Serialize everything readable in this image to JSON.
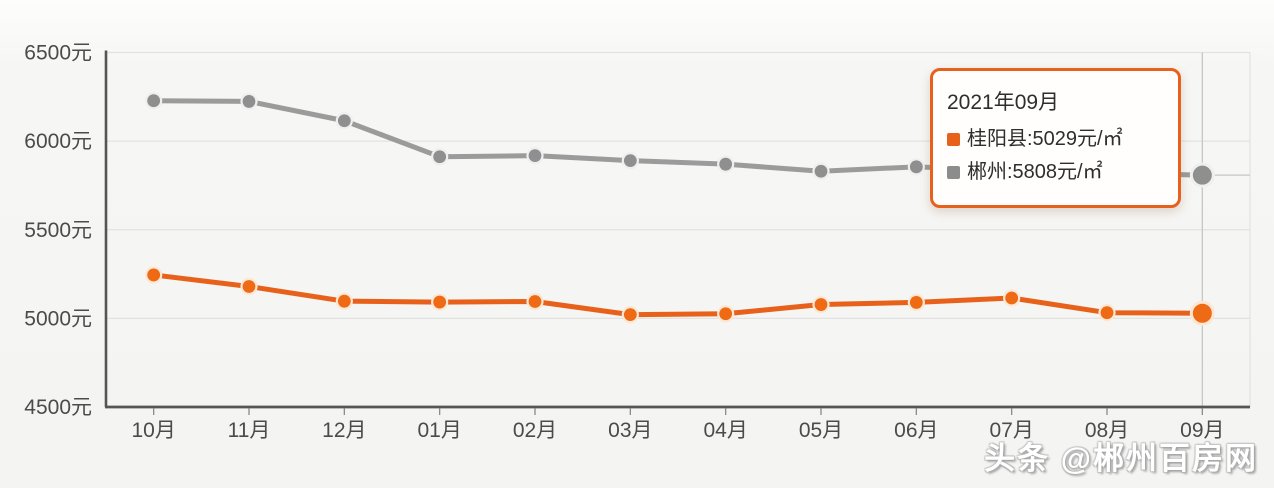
{
  "chart_data": {
    "type": "line",
    "title": "",
    "xlabel": "",
    "ylabel": "",
    "unit": "元",
    "categories": [
      "10月",
      "11月",
      "12月",
      "01月",
      "02月",
      "03月",
      "04月",
      "05月",
      "06月",
      "07月",
      "08月",
      "09月"
    ],
    "series": [
      {
        "name": "桂阳县",
        "color": "#e8611a",
        "point_color": "#ee6a14",
        "halo_color": "#fbe7d4",
        "values": [
          5245,
          5180,
          5097,
          5092,
          5095,
          5021,
          5026,
          5078,
          5090,
          5115,
          5032,
          5029
        ]
      },
      {
        "name": "郴州",
        "color": "#9b9b9b",
        "point_color": "#8f8f8f",
        "halo_color": "#efefef",
        "values": [
          6228,
          6224,
          6115,
          5912,
          5918,
          5890,
          5870,
          5830,
          5855,
          5835,
          5820,
          5808
        ]
      }
    ],
    "ylim": [
      4500,
      6500
    ],
    "y_ticks": [
      4500,
      5000,
      5500,
      6000,
      6500
    ],
    "y_tick_labels": [
      "4500元",
      "5000元",
      "5500元",
      "6000元",
      "6500元"
    ],
    "grid": true,
    "legend": false,
    "hover_index": 11,
    "axis_color": "#555555",
    "grid_color": "#e2e2e0",
    "crosshair_color": "#c6c6ca",
    "label_color": "#4b4b4b"
  },
  "tooltip": {
    "title": "2021年09月",
    "items": [
      {
        "name": "桂阳县",
        "text": "桂阳县:5029元/㎡",
        "marker_color": "#e8611a"
      },
      {
        "name": "郴州",
        "text": "郴州:5808元/㎡",
        "marker_color": "#8c8c8c"
      }
    ]
  },
  "watermark": {
    "text": "头条 @郴州百房网"
  }
}
